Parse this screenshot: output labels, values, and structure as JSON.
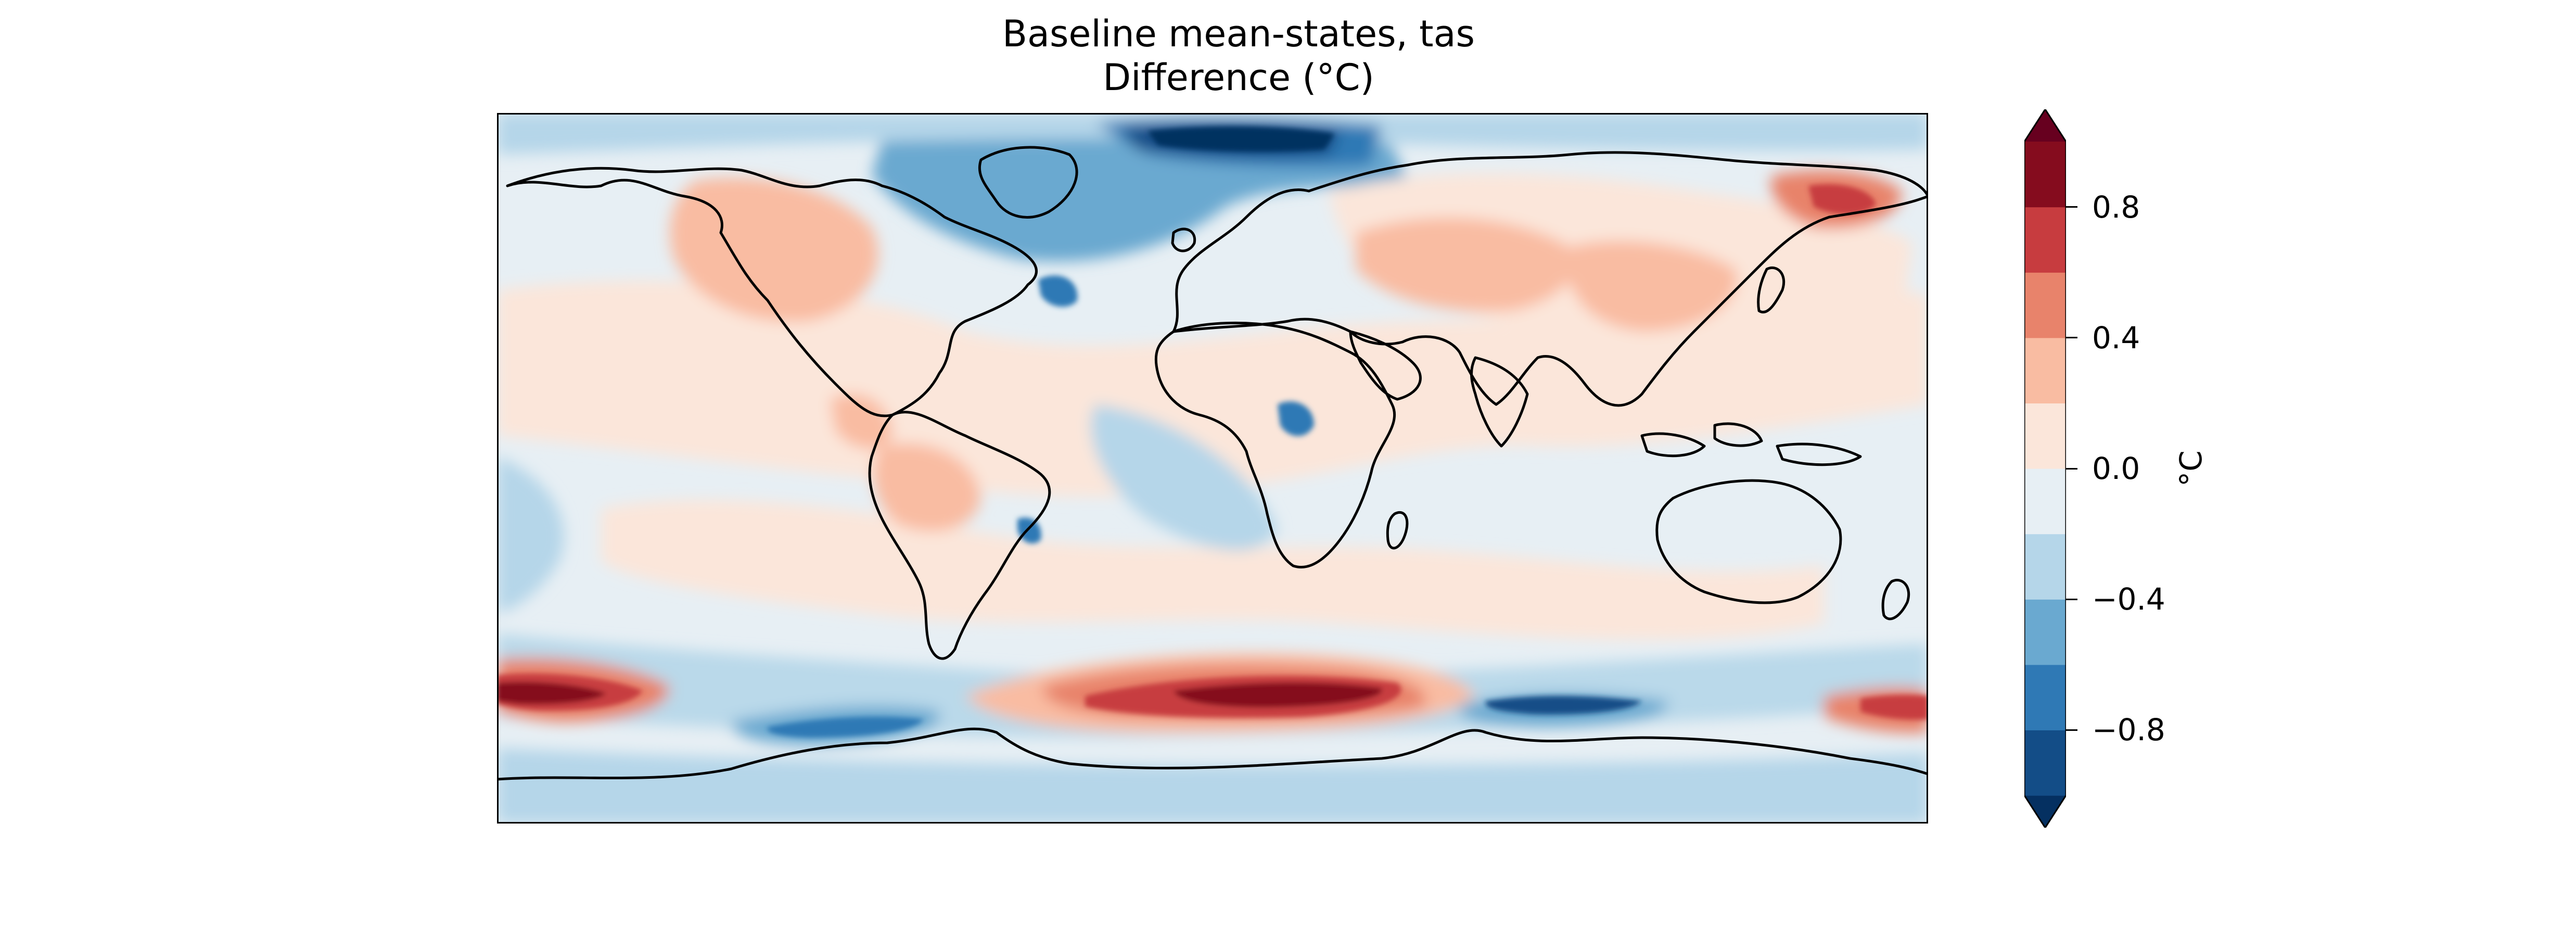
{
  "chart_data": {
    "type": "filled-contour-map",
    "title": "Baseline mean-states, tas",
    "subtitle": "Difference (°C)",
    "variable": "tas",
    "projection": "PlateCarree",
    "extent": {
      "lon": [
        -180,
        180
      ],
      "lat": [
        -90,
        90
      ]
    },
    "coastlines": true,
    "colorbar": {
      "label": "°C",
      "orientation": "vertical",
      "placement": "right",
      "extend": "both",
      "levels": [
        -1.0,
        -0.8,
        -0.6,
        -0.4,
        -0.2,
        0.0,
        0.2,
        0.4,
        0.6,
        0.8,
        1.0
      ],
      "colors": [
        "#053061",
        "#134d87",
        "#2f79b5",
        "#6aa9d0",
        "#b5d6e9",
        "#e7eff4",
        "#fbe6da",
        "#f9bca2",
        "#e8836b",
        "#c73c3f",
        "#850c1e",
        "#67001f"
      ],
      "ticks": [
        -0.8,
        -0.4,
        0.0,
        0.4,
        0.8
      ],
      "tick_labels": [
        "−0.8",
        "−0.4",
        "0.0",
        "0.4",
        "0.8"
      ]
    }
  }
}
